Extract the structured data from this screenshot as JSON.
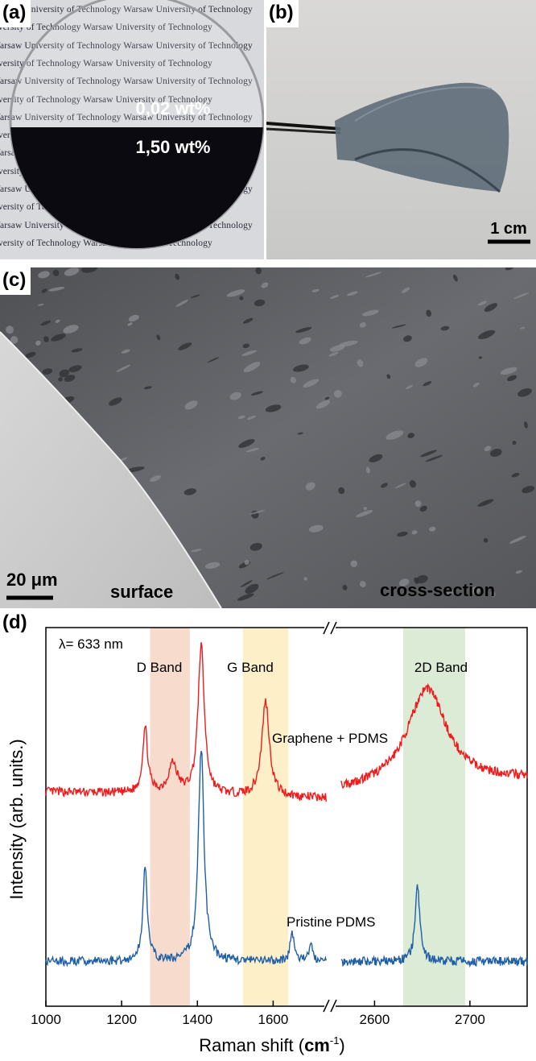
{
  "panels": {
    "a": {
      "label": "(a)",
      "watermark_line": "Warsaw University of Technology Warsaw University of Technology",
      "watermark_lines_count": 14,
      "upper_label": "0,02 wt%",
      "lower_label": "1,50 wt%"
    },
    "b": {
      "label": "(b)",
      "scale_bar": "1 cm"
    },
    "c": {
      "label": "(c)",
      "scale_bar": "20 μm",
      "left_region": "surface",
      "right_region": "cross-section"
    },
    "d": {
      "label": "(d)",
      "wavelength": "λ= 633 nm"
    }
  },
  "colors": {
    "red_trace": "#ee1c1c",
    "blue_trace": "#1f5fa8",
    "d_band": "#f7dccd",
    "g_band": "#fdf0c8",
    "band_2d": "#dcebd6"
  },
  "chart_data": {
    "type": "line",
    "xlabel": "Raman shift (cm-1)",
    "ylabel": "Intensity (arb. units.)",
    "axis_break": "//",
    "xticks_left": [
      1000,
      1200,
      1400,
      1600
    ],
    "xticks_right": [
      2600,
      2700
    ],
    "xlim_left": [
      1000,
      1750
    ],
    "xlim_right": [
      2560,
      2760
    ],
    "bands": [
      {
        "name": "D Band",
        "range": [
          1275,
          1380
        ],
        "color": "#f7dccd"
      },
      {
        "name": "G Band",
        "range": [
          1520,
          1640
        ],
        "color": "#fdf0c8"
      },
      {
        "name": "2D Band",
        "range": [
          2630,
          2695
        ],
        "color": "#dcebd6"
      }
    ],
    "series": [
      {
        "name": "Graphene + PDMS",
        "color": "#ee1c1c",
        "baseline": 0.62,
        "peaks_left": [
          [
            1262,
            0.22,
            8
          ],
          [
            1335,
            0.1,
            14
          ],
          [
            1410,
            0.5,
            10
          ],
          [
            1580,
            0.32,
            12
          ]
        ],
        "peaks_right": [
          [
            2655,
            0.33,
            25
          ]
        ]
      },
      {
        "name": "Pristine PDMS",
        "color": "#1f5fa8",
        "baseline": 0.05,
        "peaks_left": [
          [
            1262,
            0.32,
            7
          ],
          [
            1410,
            0.72,
            9
          ],
          [
            1650,
            0.1,
            6
          ],
          [
            1700,
            0.07,
            5
          ]
        ],
        "peaks_right": [
          [
            2645,
            0.25,
            3
          ]
        ]
      }
    ]
  }
}
